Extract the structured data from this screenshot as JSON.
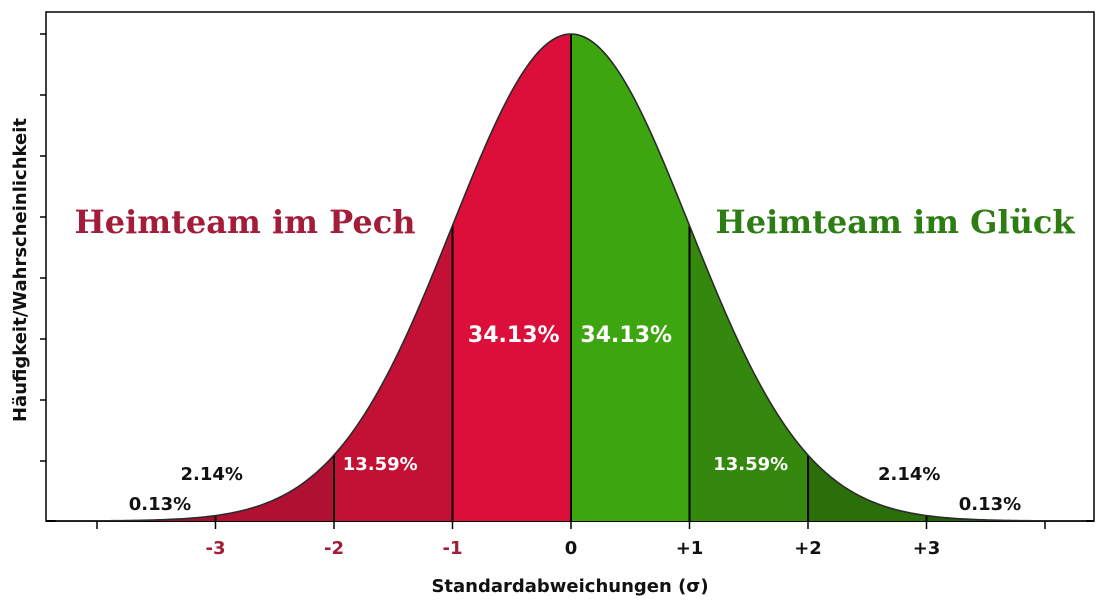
{
  "chart_data": {
    "type": "area",
    "title": "",
    "xlabel": "Standardabweichungen (σ)",
    "ylabel": "Häufigkeit/Wahrscheinlichkeit",
    "xlim": [
      -4,
      4
    ],
    "mean": 0,
    "sd": 1,
    "ticks": [
      {
        "value": -3,
        "label": "-3",
        "color": "#a31d3a"
      },
      {
        "value": -2,
        "label": "-2",
        "color": "#a31d3a"
      },
      {
        "value": -1,
        "label": "-1",
        "color": "#a31d3a"
      },
      {
        "value": 0,
        "label": "0",
        "color": "#111111"
      },
      {
        "value": 1,
        "label": "+1",
        "color": "#111111"
      },
      {
        "value": 2,
        "label": "+2",
        "color": "#111111"
      },
      {
        "value": 3,
        "label": "+3",
        "color": "#111111"
      }
    ],
    "regions": [
      {
        "from": -4,
        "to": -3,
        "percent": "0.13%",
        "color": "#a50f2d",
        "label_color": "#111111",
        "label_outside": true
      },
      {
        "from": -3,
        "to": -2,
        "percent": "2.14%",
        "color": "#b01032",
        "label_color": "#111111",
        "label_outside": true
      },
      {
        "from": -2,
        "to": -1,
        "percent": "13.59%",
        "color": "#c21134",
        "label_color": "#ffffff",
        "label_outside": false
      },
      {
        "from": -1,
        "to": 0,
        "percent": "34.13%",
        "color": "#dc0e3a",
        "label_color": "#ffffff",
        "label_outside": false
      },
      {
        "from": 0,
        "to": 1,
        "percent": "34.13%",
        "color": "#3da50f",
        "label_color": "#ffffff",
        "label_outside": false
      },
      {
        "from": 1,
        "to": 2,
        "percent": "13.59%",
        "color": "#35880e",
        "label_color": "#ffffff",
        "label_outside": false
      },
      {
        "from": 2,
        "to": 3,
        "percent": "2.14%",
        "color": "#2a6f0a",
        "label_color": "#111111",
        "label_outside": true
      },
      {
        "from": 3,
        "to": 4,
        "percent": "0.13%",
        "color": "#235f08",
        "label_color": "#111111",
        "label_outside": true
      }
    ],
    "annotations": [
      {
        "text": "Heimteam im Pech",
        "color": "#a31d3a",
        "side": "left"
      },
      {
        "text": "Heimteam im Glück",
        "color": "#2e7d14",
        "side": "right"
      }
    ],
    "grid": false,
    "legend": "none"
  }
}
